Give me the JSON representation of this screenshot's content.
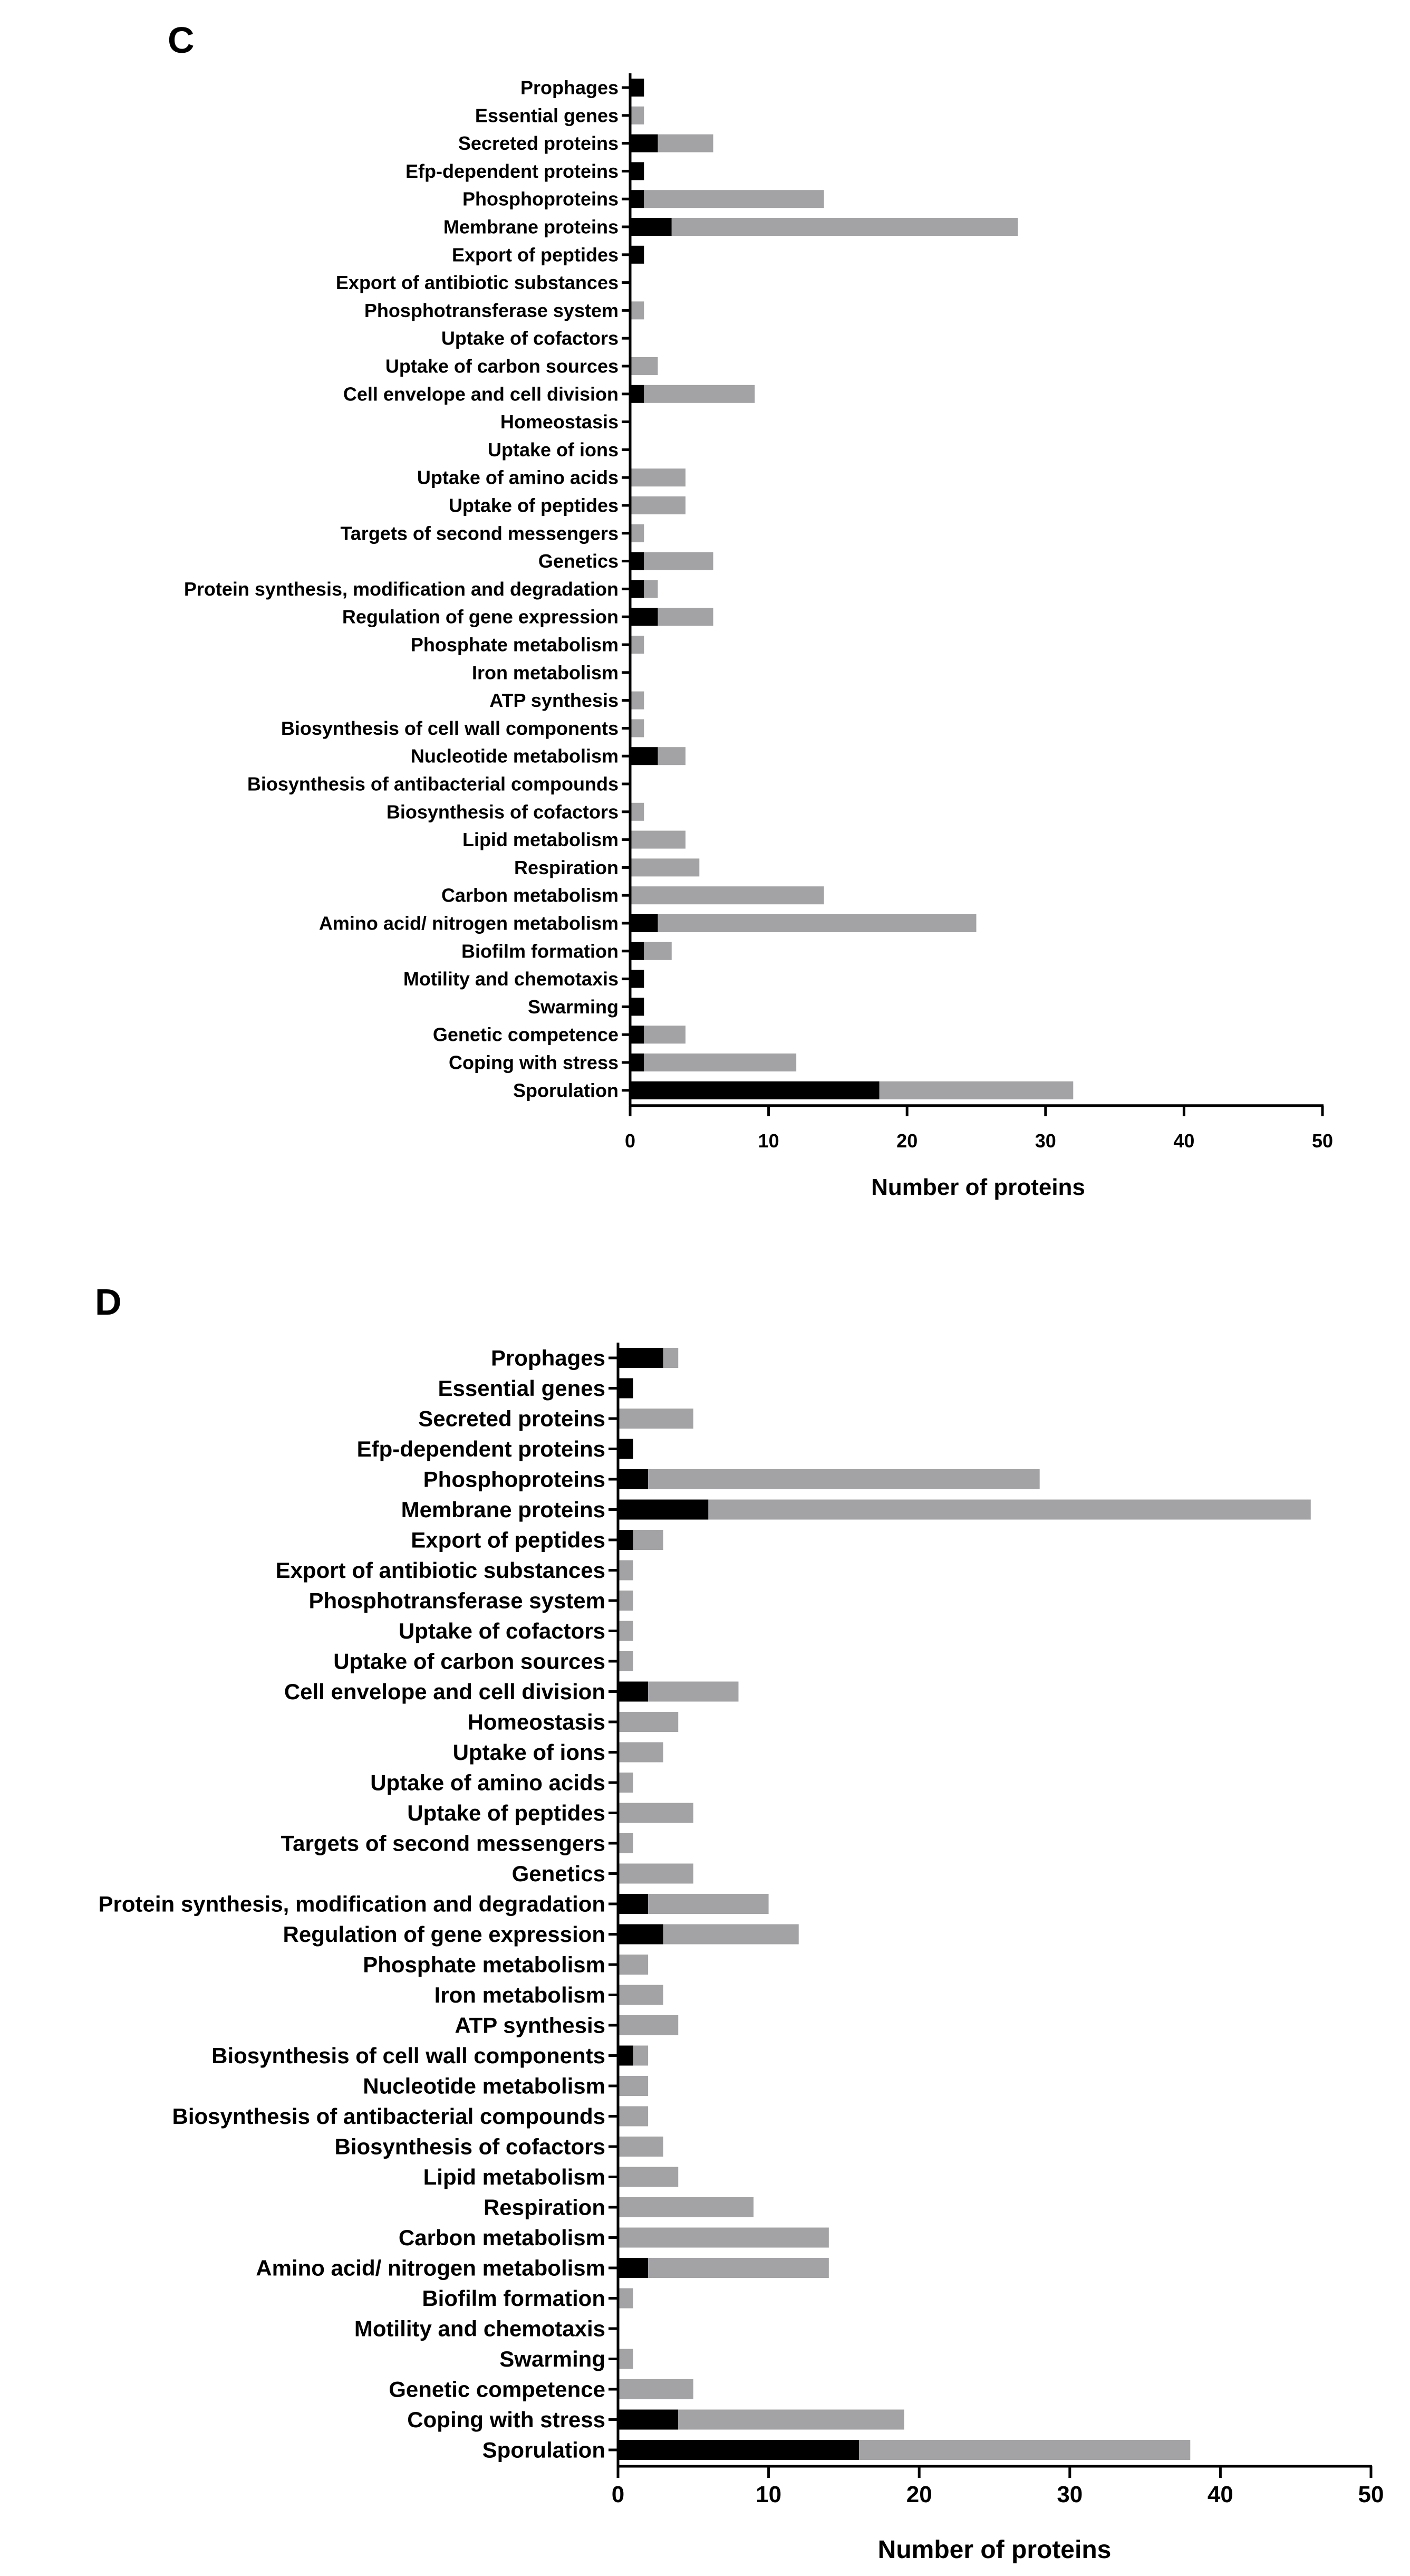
{
  "colors": {
    "black_series": "#000000",
    "gray_series": "#a3a3a6",
    "axis": "#000000"
  },
  "chart_data": [
    {
      "panel": "C",
      "type": "bar",
      "orientation": "horizontal",
      "stacked": true,
      "xlabel": "Number of proteins",
      "ylabel": "",
      "xlim": [
        0,
        50
      ],
      "xticks": [
        0,
        10,
        20,
        30,
        40,
        50
      ],
      "categories": [
        "Prophages",
        "Essential genes",
        "Secreted proteins",
        "Efp-dependent proteins",
        "Phosphoproteins",
        "Membrane proteins",
        "Export of peptides",
        "Export of antibiotic substances",
        "Phosphotransferase system",
        "Uptake of cofactors",
        "Uptake of carbon sources",
        "Cell envelope and cell division",
        "Homeostasis",
        "Uptake of ions",
        "Uptake of amino acids",
        "Uptake of peptides",
        "Targets of second messengers",
        "Genetics",
        "Protein synthesis, modification and degradation",
        "Regulation of gene expression",
        "Phosphate metabolism",
        "Iron metabolism",
        "ATP synthesis",
        "Biosynthesis of cell wall components",
        "Nucleotide metabolism",
        "Biosynthesis of antibacterial compounds",
        "Biosynthesis of cofactors",
        "Lipid metabolism",
        "Respiration",
        "Carbon metabolism",
        "Amino acid/ nitrogen metabolism",
        "Biofilm formation",
        "Motility and chemotaxis",
        "Swarming",
        "Genetic competence",
        "Coping with stress",
        "Sporulation"
      ],
      "series": [
        {
          "name": "black",
          "color": "#000000",
          "values": [
            1,
            0,
            2,
            1,
            1,
            3,
            1,
            0,
            0,
            0,
            0,
            1,
            0,
            0,
            0,
            0,
            0,
            1,
            1,
            2,
            0,
            0,
            0,
            0,
            2,
            0,
            0,
            0,
            0,
            0,
            2,
            1,
            1,
            1,
            1,
            1,
            18
          ]
        },
        {
          "name": "gray",
          "color": "#a3a3a6",
          "values": [
            0,
            1,
            4,
            0,
            13,
            25,
            0,
            0,
            1,
            0,
            2,
            8,
            0,
            0,
            4,
            4,
            1,
            5,
            1,
            4,
            1,
            0,
            1,
            1,
            2,
            0,
            1,
            4,
            5,
            14,
            23,
            2,
            0,
            0,
            3,
            11,
            14
          ]
        }
      ]
    },
    {
      "panel": "D",
      "type": "bar",
      "orientation": "horizontal",
      "stacked": true,
      "xlabel": "Number of proteins",
      "ylabel": "",
      "xlim": [
        0,
        50
      ],
      "xticks": [
        0,
        10,
        20,
        30,
        40,
        50
      ],
      "categories": [
        "Prophages",
        "Essential genes",
        "Secreted proteins",
        "Efp-dependent proteins",
        "Phosphoproteins",
        "Membrane proteins",
        "Export of peptides",
        "Export of antibiotic substances",
        "Phosphotransferase system",
        "Uptake of cofactors",
        "Uptake of carbon sources",
        "Cell envelope and cell division",
        "Homeostasis",
        "Uptake of ions",
        "Uptake of amino acids",
        "Uptake of peptides",
        "Targets of second messengers",
        "Genetics",
        "Protein synthesis, modification and degradation",
        "Regulation of gene expression",
        "Phosphate metabolism",
        "Iron metabolism",
        "ATP synthesis",
        "Biosynthesis of cell wall components",
        "Nucleotide metabolism",
        "Biosynthesis of antibacterial compounds",
        "Biosynthesis of cofactors",
        "Lipid metabolism",
        "Respiration",
        "Carbon metabolism",
        "Amino acid/ nitrogen metabolism",
        "Biofilm formation",
        "Motility and chemotaxis",
        "Swarming",
        "Genetic competence",
        "Coping with stress",
        "Sporulation"
      ],
      "series": [
        {
          "name": "black",
          "color": "#000000",
          "values": [
            3,
            1,
            0,
            1,
            2,
            6,
            1,
            0,
            0,
            0,
            0,
            2,
            0,
            0,
            0,
            0,
            0,
            0,
            2,
            3,
            0,
            0,
            0,
            1,
            0,
            0,
            0,
            0,
            0,
            0,
            2,
            0,
            0,
            0,
            0,
            4,
            16
          ]
        },
        {
          "name": "gray",
          "color": "#a3a3a6",
          "values": [
            1,
            0,
            5,
            0,
            26,
            40,
            2,
            1,
            1,
            1,
            1,
            6,
            4,
            3,
            1,
            5,
            1,
            5,
            8,
            9,
            2,
            3,
            4,
            1,
            2,
            2,
            3,
            4,
            9,
            14,
            12,
            1,
            0,
            1,
            5,
            15,
            22
          ]
        }
      ]
    }
  ]
}
